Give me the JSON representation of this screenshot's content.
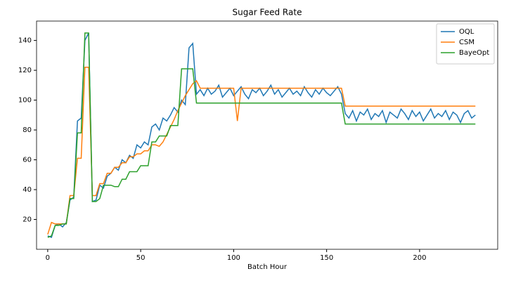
{
  "chart_data": {
    "type": "line",
    "title": "Sugar Feed Rate",
    "x_label": "Batch Hour",
    "x": [
      0,
      2,
      4,
      6,
      8,
      10,
      12,
      14,
      16,
      18,
      20,
      22,
      24,
      26,
      28,
      30,
      32,
      34,
      36,
      38,
      40,
      42,
      44,
      46,
      48,
      50,
      52,
      54,
      56,
      58,
      60,
      62,
      64,
      66,
      68,
      70,
      72,
      74,
      76,
      78,
      80,
      82,
      84,
      86,
      88,
      90,
      92,
      94,
      96,
      98,
      100,
      102,
      104,
      106,
      108,
      110,
      112,
      114,
      116,
      118,
      120,
      122,
      124,
      126,
      128,
      130,
      132,
      134,
      136,
      138,
      140,
      142,
      144,
      146,
      148,
      150,
      152,
      154,
      156,
      158,
      160,
      162,
      164,
      166,
      168,
      170,
      172,
      174,
      176,
      178,
      180,
      182,
      184,
      186,
      188,
      190,
      192,
      194,
      196,
      198,
      200,
      202,
      204,
      206,
      208,
      210,
      212,
      214,
      216,
      218,
      220,
      222,
      224,
      226,
      228,
      230
    ],
    "series": [
      {
        "name": "OQL",
        "color": "#1f77b4",
        "values": [
          9,
          8,
          16,
          17,
          15,
          18,
          33,
          35,
          86,
          88,
          140,
          145,
          32,
          33,
          43,
          41,
          49,
          51,
          55,
          53,
          60,
          58,
          63,
          61,
          70,
          68,
          72,
          70,
          82,
          84,
          80,
          88,
          86,
          90,
          95,
          92,
          100,
          97,
          135,
          138,
          104,
          107,
          103,
          108,
          104,
          106,
          110,
          102,
          105,
          108,
          103,
          106,
          109,
          104,
          101,
          107,
          105,
          108,
          103,
          106,
          110,
          104,
          107,
          102,
          105,
          108,
          104,
          106,
          103,
          109,
          105,
          102,
          107,
          104,
          108,
          105,
          103,
          106,
          109,
          104,
          91,
          88,
          93,
          86,
          92,
          90,
          94,
          87,
          91,
          89,
          93,
          85,
          92,
          90,
          88,
          94,
          91,
          87,
          93,
          89,
          92,
          86,
          90,
          94,
          88,
          91,
          89,
          93,
          87,
          92,
          90,
          85,
          91,
          93,
          88,
          90
        ]
      },
      {
        "name": "CSM",
        "color": "#ff7f0e",
        "values": [
          10,
          18,
          17,
          17,
          17,
          17,
          36,
          36,
          61,
          61,
          122,
          122,
          36,
          36,
          44,
          44,
          51,
          51,
          55,
          55,
          58,
          58,
          62,
          62,
          64,
          64,
          66,
          66,
          70,
          70,
          69,
          72,
          77,
          82,
          87,
          93,
          98,
          103,
          107,
          111,
          113,
          108,
          108,
          108,
          108,
          108,
          108,
          108,
          108,
          108,
          108,
          86,
          108,
          108,
          108,
          108,
          108,
          108,
          108,
          108,
          108,
          108,
          108,
          108,
          108,
          108,
          108,
          108,
          108,
          108,
          108,
          108,
          108,
          108,
          108,
          108,
          108,
          108,
          108,
          108,
          96,
          96,
          96,
          96,
          96,
          96,
          96,
          96,
          96,
          96,
          96,
          96,
          96,
          96,
          96,
          96,
          96,
          96,
          96,
          96,
          96,
          96,
          96,
          96,
          96,
          96,
          96,
          96,
          96,
          96,
          96,
          96,
          96,
          96,
          96,
          96
        ]
      },
      {
        "name": "BayeOpt",
        "color": "#2ca02c",
        "values": [
          8,
          9,
          16,
          16,
          17,
          17,
          34,
          34,
          78,
          78,
          145,
          145,
          32,
          32,
          34,
          43,
          43,
          43,
          42,
          42,
          47,
          47,
          52,
          52,
          52,
          56,
          56,
          56,
          72,
          72,
          76,
          76,
          76,
          83,
          83,
          83,
          121,
          121,
          121,
          121,
          98,
          98,
          98,
          98,
          98,
          98,
          98,
          98,
          98,
          98,
          98,
          98,
          98,
          98,
          98,
          98,
          98,
          98,
          98,
          98,
          98,
          98,
          98,
          98,
          98,
          98,
          98,
          98,
          98,
          98,
          98,
          98,
          98,
          98,
          98,
          98,
          98,
          98,
          98,
          98,
          84,
          84,
          84,
          84,
          84,
          84,
          84,
          84,
          84,
          84,
          84,
          84,
          84,
          84,
          84,
          84,
          84,
          84,
          84,
          84,
          84,
          84,
          84,
          84,
          84,
          84,
          84,
          84,
          84,
          84,
          84,
          84,
          84,
          84,
          84,
          84
        ]
      }
    ],
    "xlim": [
      -6,
      242
    ],
    "ylim": [
      0,
      153
    ],
    "xticks": [
      0,
      50,
      100,
      150,
      200
    ],
    "yticks": [
      20,
      40,
      60,
      80,
      100,
      120,
      140
    ],
    "legend": "upper right"
  }
}
